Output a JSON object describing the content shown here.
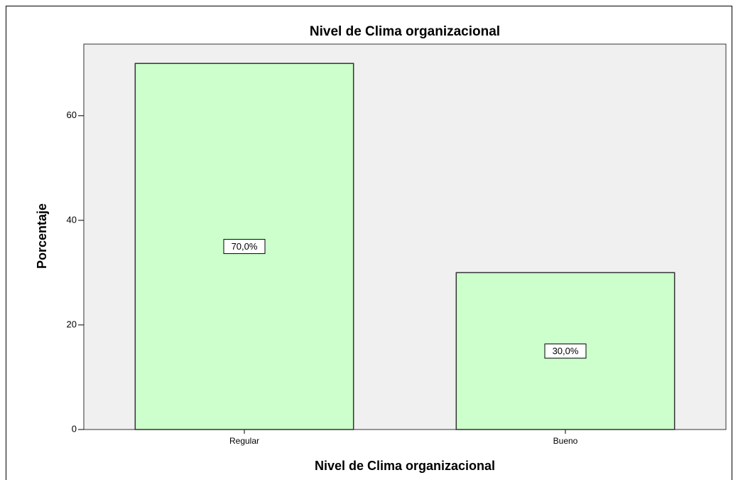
{
  "chart_data": {
    "type": "bar",
    "title": "Nivel de Clima organizacional",
    "x_label": "Nivel de Clima organizacional",
    "y_label": "Porcentaje",
    "categories": [
      "Regular",
      "Bueno"
    ],
    "values": [
      70,
      30
    ],
    "value_labels": [
      "70,0%",
      "30,0%"
    ],
    "color": "#ccffcc",
    "background": "#f0f0f0",
    "ylim": [
      0,
      73.7
    ],
    "yticks": [
      0,
      20,
      40,
      60
    ],
    "grid": false
  }
}
